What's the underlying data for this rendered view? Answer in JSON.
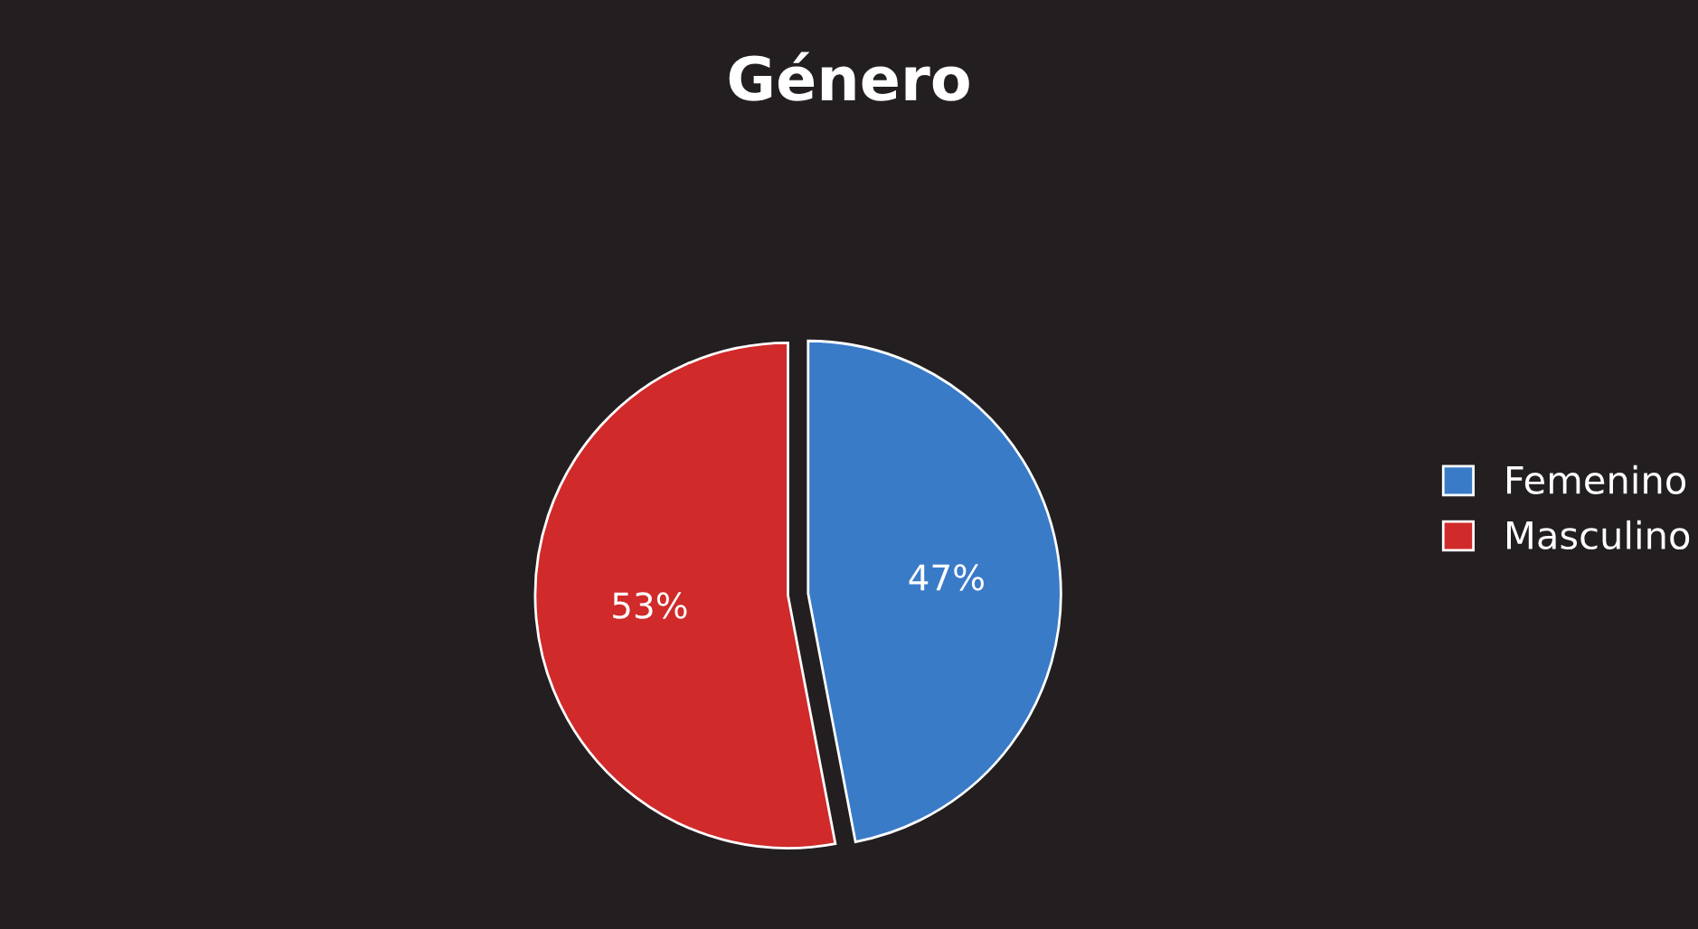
{
  "chart_data": {
    "type": "pie",
    "title": "Género",
    "categories": [
      "Femenino",
      "Masculino"
    ],
    "values": [
      47,
      53
    ],
    "colors": [
      "#3a7bc8",
      "#d02a2a"
    ],
    "value_labels": [
      "47%",
      "53%"
    ],
    "legend": "right"
  }
}
